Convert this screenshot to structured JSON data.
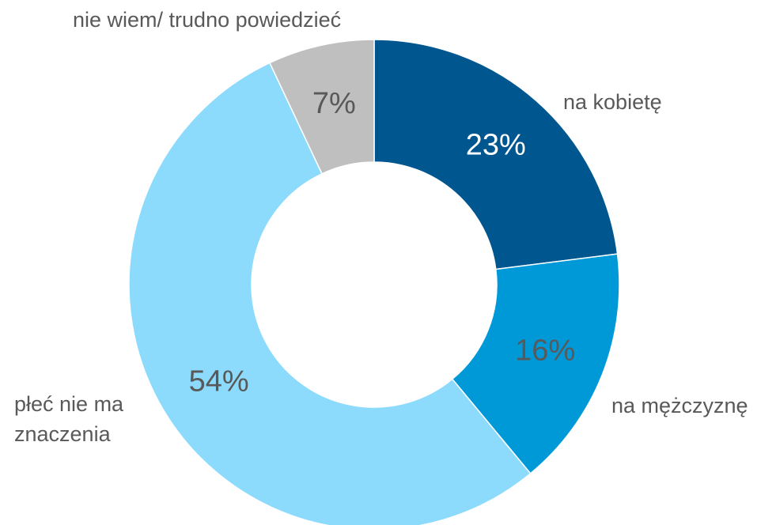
{
  "chart_data": {
    "type": "donut",
    "categories": [
      "na kobietę",
      "na mężczyznę",
      "płeć nie ma znaczenia",
      "nie wiem/ trudno powiedzieć"
    ],
    "values": [
      23,
      16,
      54,
      7
    ],
    "value_labels": [
      "23%",
      "16%",
      "54%",
      "7%"
    ],
    "colors": [
      "#00568f",
      "#0099d8",
      "#8cdafc",
      "#bfbfbf"
    ]
  }
}
